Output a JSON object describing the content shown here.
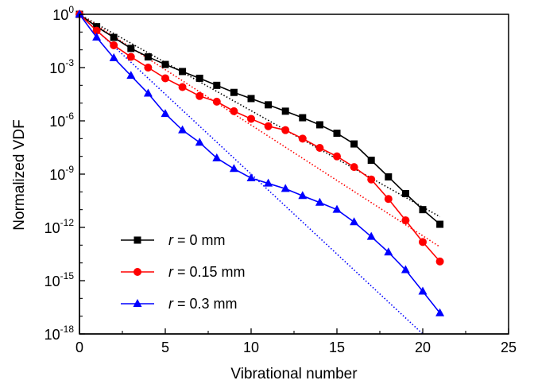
{
  "chart_data": {
    "type": "line",
    "xlabel": "Vibrational number",
    "ylabel": "Normalized VDF",
    "xlim": [
      0,
      25
    ],
    "ylim": [
      1e-18,
      1
    ],
    "yscale": "log",
    "x_ticks": [
      "0",
      "5",
      "10",
      "15",
      "20",
      "25"
    ],
    "y_ticks": [
      {
        "base": "10",
        "exp": "-18"
      },
      {
        "base": "10",
        "exp": "-15"
      },
      {
        "base": "10",
        "exp": "-12"
      },
      {
        "base": "10",
        "exp": "-9"
      },
      {
        "base": "10",
        "exp": "-6"
      },
      {
        "base": "10",
        "exp": "-3"
      },
      {
        "base": "10",
        "exp": "0"
      }
    ],
    "legend_position": "bottom-left",
    "series": [
      {
        "name": "r = 0 mm",
        "legend_var": "r",
        "legend_rest": " = 0 mm",
        "color": "#000000",
        "marker": "square",
        "x": [
          0,
          1,
          2,
          3,
          4,
          5,
          6,
          7,
          8,
          9,
          10,
          11,
          12,
          13,
          14,
          15,
          16,
          17,
          18,
          19,
          20,
          21
        ],
        "y": [
          1,
          0.2,
          0.05,
          0.012,
          0.004,
          0.0015,
          0.0006,
          0.00025,
          0.0001,
          4e-05,
          1.8e-05,
          8e-06,
          3.5e-06,
          1.5e-06,
          6e-07,
          2e-07,
          5e-08,
          6e-09,
          7e-10,
          8e-11,
          1e-11,
          1.5e-12
        ]
      },
      {
        "name": "r = 0.15 mm",
        "legend_var": "r",
        "legend_rest": " = 0.15 mm",
        "color": "#ff0000",
        "marker": "circle",
        "x": [
          0,
          1,
          2,
          3,
          4,
          5,
          6,
          7,
          8,
          9,
          10,
          11,
          12,
          13,
          14,
          15,
          16,
          17,
          18,
          19,
          20,
          21
        ],
        "y": [
          1,
          0.12,
          0.018,
          0.004,
          0.001,
          0.00025,
          8e-05,
          2.5e-05,
          1.2e-05,
          3.5e-06,
          1.3e-06,
          5e-07,
          3e-07,
          1e-07,
          3e-08,
          1e-08,
          2.5e-09,
          5e-10,
          4e-11,
          2.5e-12,
          1.5e-13,
          1.2e-14
        ]
      },
      {
        "name": "r = 0.3 mm",
        "legend_var": "r",
        "legend_rest": " = 0.3 mm",
        "color": "#0000ff",
        "marker": "triangle",
        "x": [
          0,
          1,
          2,
          3,
          4,
          5,
          6,
          7,
          8,
          9,
          10,
          11,
          12,
          13,
          14,
          15,
          16,
          17,
          18,
          19,
          20,
          21
        ],
        "y": [
          1,
          0.05,
          0.0035,
          0.00035,
          3.5e-05,
          2.5e-06,
          3e-07,
          6e-08,
          8e-09,
          2e-09,
          6e-10,
          3e-10,
          1.5e-10,
          6e-11,
          2.5e-11,
          1e-11,
          2e-12,
          3e-13,
          4e-14,
          4e-15,
          2.5e-16,
          1.5e-17
        ]
      }
    ],
    "fit_lines": [
      {
        "color": "#000000",
        "x": [
          0,
          21
        ],
        "y": [
          1,
          4e-12
        ]
      },
      {
        "color": "#ff0000",
        "x": [
          0,
          21
        ],
        "y": [
          1,
          8e-14
        ]
      },
      {
        "color": "#0000ff",
        "x": [
          0,
          20
        ],
        "y": [
          1,
          1e-18
        ]
      }
    ]
  }
}
